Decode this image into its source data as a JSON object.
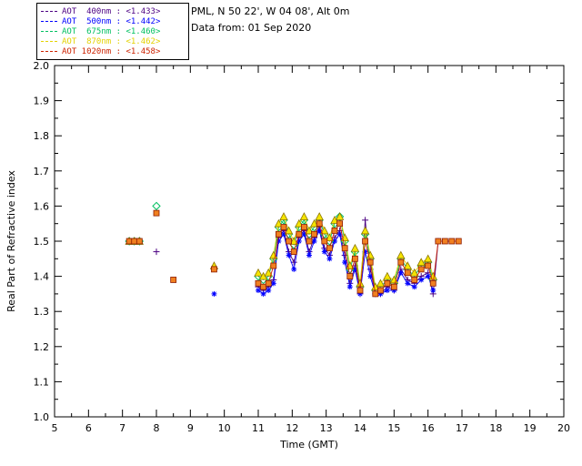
{
  "header": {
    "location": "PML, N 50 22', W 04 08', Alt 0m",
    "date_line": "Data from: 01 Sep 2020"
  },
  "chart_data": {
    "type": "scatter",
    "title": "",
    "xlabel": "Time (GMT)",
    "ylabel": "Real Part of Refractive index",
    "xlim": [
      5,
      20
    ],
    "ylim": [
      1.0,
      2.0
    ],
    "xtick_major": 1,
    "xtick_minor": 0.5,
    "ytick_major": 0.1,
    "ytick_minor": 0.05,
    "grid": "off",
    "legend_position": "outside-top-left",
    "frame_color": "#000000",
    "x": [
      7.2,
      7.35,
      7.5,
      8.0,
      8.5,
      9.7,
      11.0,
      11.15,
      11.3,
      11.45,
      11.6,
      11.75,
      11.9,
      12.05,
      12.2,
      12.35,
      12.5,
      12.65,
      12.8,
      12.95,
      13.1,
      13.25,
      13.4,
      13.55,
      13.7,
      13.85,
      14.0,
      14.15,
      14.3,
      14.45,
      14.6,
      14.8,
      15.0,
      15.2,
      15.4,
      15.6,
      15.8,
      16.0,
      16.15,
      16.3,
      16.5,
      16.7,
      16.9
    ],
    "series": [
      {
        "name": "AOT 400nm",
        "label": "AOT  400nm : <1.433>",
        "mean": 1.433,
        "color": "#4b0082",
        "marker": "plus",
        "values": [
          null,
          null,
          null,
          1.47,
          null,
          null,
          1.37,
          1.36,
          1.37,
          1.39,
          1.51,
          1.53,
          1.47,
          1.44,
          1.51,
          1.53,
          1.47,
          1.51,
          1.54,
          1.48,
          1.46,
          1.51,
          1.53,
          1.46,
          1.38,
          1.43,
          1.35,
          1.56,
          1.42,
          1.35,
          1.35,
          1.37,
          1.36,
          1.42,
          1.39,
          1.38,
          1.4,
          1.41,
          1.35,
          1.5,
          null,
          null,
          null
        ]
      },
      {
        "name": "AOT 500nm",
        "label": "AOT  500nm : <1.442>",
        "mean": 1.442,
        "color": "#0000ff",
        "marker": "asterisk",
        "values": [
          1.5,
          1.5,
          1.5,
          null,
          null,
          1.35,
          1.36,
          1.35,
          1.36,
          1.38,
          1.5,
          1.52,
          1.46,
          1.42,
          1.5,
          1.52,
          1.46,
          1.5,
          1.53,
          1.47,
          1.45,
          1.5,
          1.52,
          1.44,
          1.37,
          1.42,
          1.35,
          1.47,
          1.4,
          1.35,
          1.35,
          1.36,
          1.36,
          1.41,
          1.38,
          1.37,
          1.39,
          1.4,
          1.36,
          null,
          null,
          null,
          null
        ]
      },
      {
        "name": "AOT 675nm",
        "label": "AOT  675nm : <1.460>",
        "mean": 1.46,
        "color": "#00c060",
        "marker": "diamond",
        "values": [
          1.5,
          1.5,
          1.5,
          1.6,
          null,
          null,
          1.4,
          1.39,
          1.4,
          1.45,
          1.54,
          1.56,
          1.52,
          1.49,
          1.54,
          1.56,
          1.52,
          1.54,
          1.56,
          1.52,
          1.5,
          1.55,
          1.57,
          1.5,
          1.42,
          1.47,
          1.37,
          1.52,
          1.45,
          1.36,
          1.37,
          1.39,
          1.38,
          1.45,
          1.42,
          1.4,
          1.43,
          1.44,
          1.39,
          null,
          null,
          null,
          null
        ]
      },
      {
        "name": "AOT 870nm",
        "label": "AOT  870nm : <1.462>",
        "mean": 1.462,
        "color": "#e3d200",
        "fill": "#f5e400",
        "edge": "#8b7500",
        "marker": "triangle",
        "values": [
          1.5,
          1.5,
          1.5,
          null,
          null,
          1.43,
          1.41,
          1.4,
          1.41,
          1.46,
          1.55,
          1.57,
          1.53,
          1.5,
          1.55,
          1.57,
          1.53,
          1.55,
          1.57,
          1.53,
          1.51,
          1.56,
          1.57,
          1.51,
          1.43,
          1.48,
          1.38,
          1.53,
          1.46,
          1.37,
          1.38,
          1.4,
          1.39,
          1.46,
          1.43,
          1.41,
          1.44,
          1.45,
          1.4,
          null,
          null,
          null,
          null
        ]
      },
      {
        "name": "AOT 1020nm",
        "label": "AOT 1020nm : <1.458>",
        "mean": 1.458,
        "color": "#cc2200",
        "fill": "#f08020",
        "edge": "#8b1a00",
        "marker": "square",
        "values": [
          1.5,
          1.5,
          1.5,
          1.58,
          1.39,
          1.42,
          1.38,
          1.37,
          1.38,
          1.43,
          1.52,
          1.54,
          1.5,
          1.47,
          1.52,
          1.54,
          1.5,
          1.52,
          1.55,
          1.5,
          1.48,
          1.53,
          1.55,
          1.48,
          1.4,
          1.45,
          1.36,
          1.5,
          1.44,
          1.35,
          1.36,
          1.38,
          1.37,
          1.44,
          1.41,
          1.39,
          1.42,
          1.43,
          1.38,
          1.5,
          1.5,
          1.5,
          1.5
        ]
      }
    ]
  }
}
